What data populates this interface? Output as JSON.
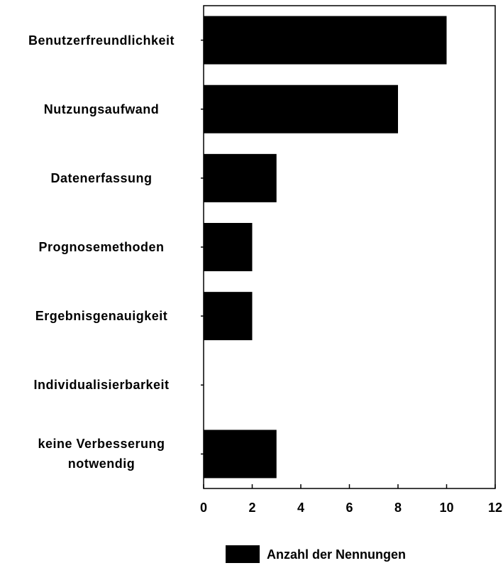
{
  "chart_data": {
    "type": "bar",
    "orientation": "horizontal",
    "categories": [
      "Benutzerfreundlichkeit",
      "Nutzungsaufwand",
      "Datenerfassung",
      "Prognosemethoden",
      "Ergebnisgenauigkeit",
      "Individualisierbarkeit",
      "keine Verbesserung notwendig"
    ],
    "series": [
      {
        "name": "Anzahl der Nennungen",
        "color": "#000000",
        "values": [
          10,
          8,
          3,
          2,
          2,
          0,
          3
        ]
      }
    ],
    "xlim": [
      0,
      12
    ],
    "xticks": [
      0,
      2,
      4,
      6,
      8,
      10,
      12
    ],
    "grid": false,
    "legend": "bottom"
  }
}
